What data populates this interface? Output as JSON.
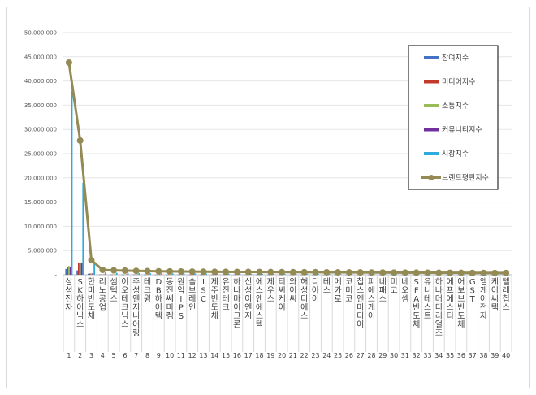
{
  "chart_data": {
    "type": "bar",
    "title": "",
    "xlabel": "",
    "ylabel": "",
    "ylim": [
      0,
      50000000
    ],
    "y_ticks": [
      "-",
      "5,000,000",
      "10,000,000",
      "15,000,000",
      "20,000,000",
      "25,000,000",
      "30,000,000",
      "35,000,000",
      "40,000,000",
      "45,000,000",
      "50,000,000"
    ],
    "grid": true,
    "legend_position": "right",
    "categories": [
      "삼성전자",
      "SK하이닉스",
      "한미반도체",
      "리노공업",
      "셈텍스",
      "이오테크닉스",
      "주성엔지니어링",
      "테크윙",
      "DB하이텍",
      "동진쎄미켐",
      "원익IPS",
      "솔브레인",
      "ISC",
      "제주반도체",
      "유진테크",
      "하나마이크론",
      "신성이엔지",
      "에스앤에스텍",
      "제우스",
      "티씨케이",
      "와이씨",
      "해성디에스",
      "디아이",
      "테스",
      "메카로",
      "코미코",
      "칩스앤미디어",
      "피에스케이",
      "네패스",
      "미코",
      "네오셈",
      "SFA반도체",
      "유니테스트",
      "하나머티리얼즈",
      "에프에스티",
      "어보브반도체",
      "GST",
      "엠케이전자",
      "케이씨텍",
      "텔레칩스"
    ],
    "ranks": [
      "1",
      "2",
      "3",
      "4",
      "5",
      "6",
      "7",
      "8",
      "9",
      "10",
      "11",
      "12",
      "13",
      "14",
      "15",
      "16",
      "17",
      "18",
      "19",
      "20",
      "21",
      "22",
      "23",
      "24",
      "25",
      "26",
      "27",
      "28",
      "29",
      "30",
      "31",
      "32",
      "33",
      "34",
      "35",
      "36",
      "37",
      "38",
      "39",
      "40"
    ],
    "series": [
      {
        "name": "참여지수",
        "type": "bar",
        "color": "#4472c4",
        "values": [
          1200000,
          900000,
          200000,
          60000,
          50000,
          50000,
          50000,
          40000,
          40000,
          40000,
          40000,
          30000,
          30000,
          30000,
          30000,
          30000,
          30000,
          30000,
          30000,
          30000,
          25000,
          25000,
          25000,
          25000,
          25000,
          25000,
          25000,
          25000,
          25000,
          25000,
          20000,
          20000,
          20000,
          20000,
          20000,
          20000,
          20000,
          20000,
          20000,
          20000
        ]
      },
      {
        "name": "미디어지수",
        "type": "bar",
        "color": "#c0392b",
        "values": [
          1500000,
          2400000,
          250000,
          70000,
          60000,
          60000,
          60000,
          50000,
          50000,
          50000,
          50000,
          40000,
          40000,
          40000,
          40000,
          40000,
          40000,
          40000,
          40000,
          40000,
          30000,
          30000,
          30000,
          30000,
          30000,
          30000,
          30000,
          30000,
          30000,
          30000,
          25000,
          25000,
          25000,
          25000,
          25000,
          25000,
          25000,
          25000,
          25000,
          25000
        ]
      },
      {
        "name": "소통지수",
        "type": "bar",
        "color": "#9bbb59",
        "values": [
          1800000,
          2600000,
          300000,
          80000,
          70000,
          70000,
          70000,
          60000,
          60000,
          60000,
          60000,
          50000,
          50000,
          50000,
          50000,
          50000,
          50000,
          50000,
          50000,
          50000,
          40000,
          40000,
          40000,
          40000,
          40000,
          40000,
          40000,
          40000,
          40000,
          40000,
          30000,
          30000,
          30000,
          30000,
          30000,
          30000,
          30000,
          30000,
          30000,
          30000
        ]
      },
      {
        "name": "커뮤니티지수",
        "type": "bar",
        "color": "#7030a0",
        "values": [
          1700000,
          2500000,
          300000,
          80000,
          70000,
          70000,
          70000,
          60000,
          60000,
          60000,
          60000,
          50000,
          50000,
          50000,
          50000,
          50000,
          50000,
          50000,
          50000,
          50000,
          40000,
          40000,
          40000,
          40000,
          40000,
          40000,
          40000,
          40000,
          40000,
          40000,
          30000,
          30000,
          30000,
          30000,
          30000,
          30000,
          30000,
          30000,
          30000,
          30000
        ]
      },
      {
        "name": "시장지수",
        "type": "bar",
        "color": "#2eaadc",
        "values": [
          38000000,
          19000000,
          2400000,
          500000,
          400000,
          350000,
          350000,
          300000,
          280000,
          270000,
          260000,
          250000,
          240000,
          230000,
          220000,
          210000,
          200000,
          190000,
          180000,
          170000,
          160000,
          150000,
          140000,
          130000,
          120000,
          110000,
          100000,
          90000,
          80000,
          70000,
          60000,
          55000,
          50000,
          45000,
          40000,
          35000,
          30000,
          25000,
          20000,
          15000
        ]
      },
      {
        "name": "브랜드평판지수",
        "type": "line",
        "color": "#948a54",
        "values": [
          43800000,
          27700000,
          3000000,
          1000000,
          900000,
          850000,
          800000,
          750000,
          720000,
          700000,
          680000,
          650000,
          630000,
          610000,
          600000,
          590000,
          580000,
          570000,
          560000,
          550000,
          540000,
          530000,
          520000,
          510000,
          500000,
          490000,
          480000,
          470000,
          460000,
          450000,
          440000,
          430000,
          420000,
          410000,
          400000,
          390000,
          380000,
          370000,
          360000,
          350000
        ]
      }
    ]
  }
}
